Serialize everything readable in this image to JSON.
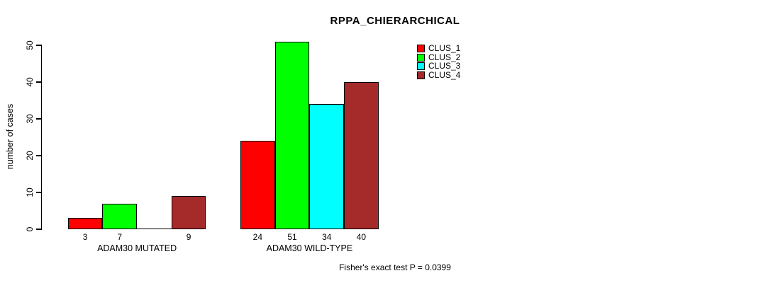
{
  "chart_data": {
    "type": "bar",
    "title": "RPPA_CHIERARCHICAL",
    "ylabel": "number of cases",
    "xlabel": "",
    "categories": [
      "ADAM30 MUTATED",
      "ADAM30 WILD-TYPE"
    ],
    "series": [
      {
        "name": "CLUS_1",
        "color": "#FF0000",
        "values": [
          3,
          24
        ]
      },
      {
        "name": "CLUS_2",
        "color": "#00FF00",
        "values": [
          7,
          51
        ]
      },
      {
        "name": "CLUS_3",
        "color": "#00FFFF",
        "values": [
          0,
          34
        ]
      },
      {
        "name": "CLUS_4",
        "color": "#A52A2A",
        "values": [
          9,
          40
        ]
      }
    ],
    "bar_value_labels": {
      "show": true,
      "hide_zero": true
    },
    "yticks": [
      0,
      10,
      20,
      30,
      40,
      50
    ],
    "ylim": [
      0,
      52
    ],
    "grid": false,
    "legend_position": "top-right",
    "annotation": "Fisher's exact test P = 0.0399",
    "colors": {
      "background": "#FFFFFF",
      "axis": "#000000",
      "bar_border": "#000000",
      "text": "#000000"
    }
  }
}
